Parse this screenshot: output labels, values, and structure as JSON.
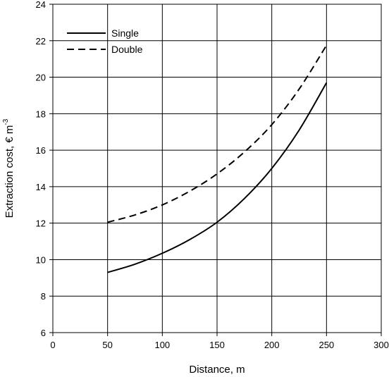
{
  "chart_data": {
    "type": "line",
    "title": "",
    "xlabel": "Distance, m",
    "ylabel_main": "Extraction cost, € m",
    "ylabel_sup": "-3",
    "xlim": [
      0,
      300
    ],
    "ylim": [
      6,
      24
    ],
    "xticks": [
      0,
      50,
      100,
      150,
      200,
      250,
      300
    ],
    "yticks": [
      6,
      8,
      10,
      12,
      14,
      16,
      18,
      20,
      22,
      24
    ],
    "grid": true,
    "legend_position": "top-left",
    "x": [
      50,
      75,
      100,
      125,
      150,
      175,
      200,
      225,
      250
    ],
    "series": [
      {
        "name": "Single",
        "style": "solid",
        "color": "#000000",
        "values": [
          9.3,
          9.75,
          10.35,
          11.1,
          12.05,
          13.35,
          15.0,
          17.1,
          19.7
        ]
      },
      {
        "name": "Double",
        "style": "dashed",
        "color": "#000000",
        "values": [
          12.05,
          12.45,
          13.0,
          13.75,
          14.7,
          15.9,
          17.4,
          19.35,
          21.75
        ]
      }
    ]
  }
}
